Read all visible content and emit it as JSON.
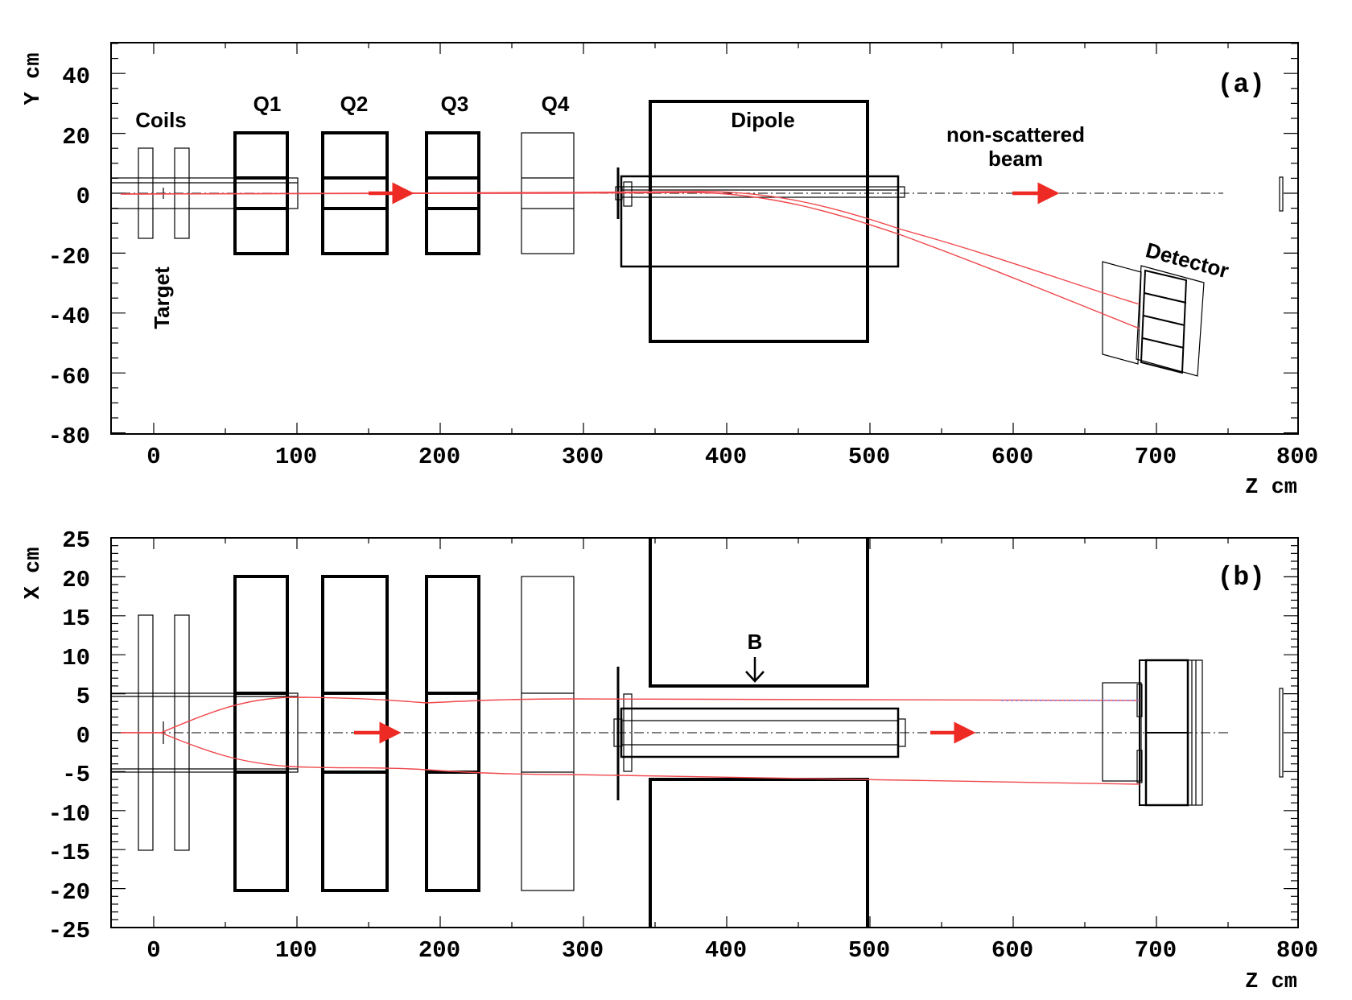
{
  "panel_a": {
    "tag": "(a)",
    "y_axis_title": "Y cm",
    "x_axis_title": "Z cm",
    "y_ticks": [
      "40",
      "20",
      "0",
      "-20",
      "-40",
      "-60",
      "-80"
    ],
    "x_ticks": [
      "0",
      "100",
      "200",
      "300",
      "400",
      "500",
      "600",
      "700",
      "800"
    ],
    "labels": {
      "coils": "Coils",
      "target": "Target",
      "q1": "Q1",
      "q2": "Q2",
      "q3": "Q3",
      "q4": "Q4",
      "dipole": "Dipole",
      "beam_line1": "non-scattered",
      "beam_line2": "beam",
      "detector": "Detector"
    }
  },
  "panel_b": {
    "tag": "(b)",
    "y_axis_title": "X cm",
    "x_axis_title": "Z cm",
    "y_ticks": [
      "25",
      "20",
      "15",
      "10",
      "5",
      "0",
      "-5",
      "-10",
      "-15",
      "-20",
      "-25"
    ],
    "x_ticks": [
      "0",
      "100",
      "200",
      "300",
      "400",
      "500",
      "600",
      "700",
      "800"
    ],
    "labels": {
      "field": "B"
    }
  },
  "colors": {
    "ray": "#f0484c",
    "arrow": "#ee2a24",
    "ink": "#000000"
  }
}
